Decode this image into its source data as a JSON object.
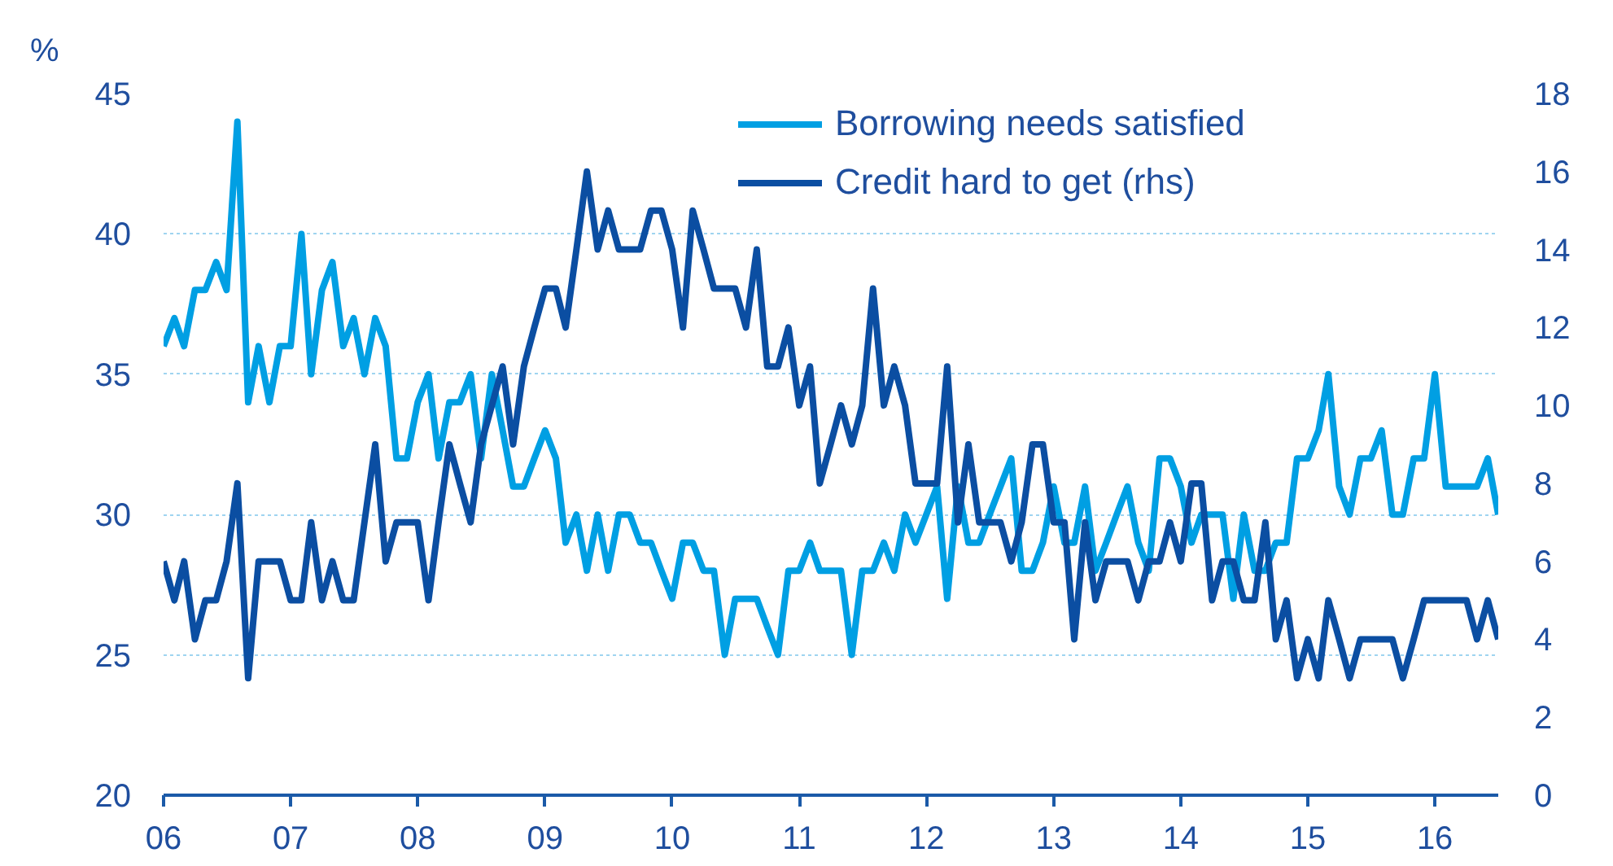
{
  "chart_data": {
    "type": "line",
    "ylabel": "%",
    "x": [
      "2006-01",
      "2006-02",
      "2006-03",
      "2006-04",
      "2006-05",
      "2006-06",
      "2006-07",
      "2006-08",
      "2006-09",
      "2006-10",
      "2006-11",
      "2006-12",
      "2007-01",
      "2007-02",
      "2007-03",
      "2007-04",
      "2007-05",
      "2007-06",
      "2007-07",
      "2007-08",
      "2007-09",
      "2007-10",
      "2007-11",
      "2007-12",
      "2008-01",
      "2008-02",
      "2008-03",
      "2008-04",
      "2008-05",
      "2008-06",
      "2008-07",
      "2008-08",
      "2008-09",
      "2008-10",
      "2008-11",
      "2008-12",
      "2009-01",
      "2009-02",
      "2009-03",
      "2009-04",
      "2009-05",
      "2009-06",
      "2009-07",
      "2009-08",
      "2009-09",
      "2009-10",
      "2009-11",
      "2009-12",
      "2010-01",
      "2010-02",
      "2010-03",
      "2010-04",
      "2010-05",
      "2010-06",
      "2010-07",
      "2010-08",
      "2010-09",
      "2010-10",
      "2010-11",
      "2010-12",
      "2011-01",
      "2011-02",
      "2011-03",
      "2011-04",
      "2011-05",
      "2011-06",
      "2011-07",
      "2011-08",
      "2011-09",
      "2011-10",
      "2011-11",
      "2011-12",
      "2012-01",
      "2012-02",
      "2012-03",
      "2012-04",
      "2012-05",
      "2012-06",
      "2012-07",
      "2012-08",
      "2012-09",
      "2012-10",
      "2012-11",
      "2012-12",
      "2013-01",
      "2013-02",
      "2013-03",
      "2013-04",
      "2013-05",
      "2013-06",
      "2013-07",
      "2013-08",
      "2013-09",
      "2013-10",
      "2013-11",
      "2013-12",
      "2014-01",
      "2014-02",
      "2014-03",
      "2014-04",
      "2014-05",
      "2014-06",
      "2014-07",
      "2014-08",
      "2014-09",
      "2014-10",
      "2014-11",
      "2014-12",
      "2015-01",
      "2015-02",
      "2015-03",
      "2015-04",
      "2015-05",
      "2015-06",
      "2015-07",
      "2015-08",
      "2015-09",
      "2015-10",
      "2015-11",
      "2015-12",
      "2016-01",
      "2016-02",
      "2016-03",
      "2016-04",
      "2016-05",
      "2016-06",
      "2016-07"
    ],
    "series": [
      {
        "name": "Borrowing needs satisfied",
        "color": "#009fe3",
        "values": [
          36,
          37,
          36,
          38,
          38,
          39,
          38,
          44,
          34,
          36,
          34,
          36,
          36,
          40,
          35,
          38,
          39,
          36,
          37,
          35,
          37,
          36,
          32,
          32,
          34,
          35,
          32,
          34,
          34,
          35,
          32,
          35,
          33,
          31,
          31,
          32,
          33,
          32,
          29,
          30,
          28,
          30,
          28,
          30,
          30,
          29,
          29,
          28,
          27,
          29,
          29,
          28,
          28,
          25,
          27,
          27,
          27,
          26,
          25,
          28,
          28,
          29,
          28,
          28,
          28,
          25,
          28,
          28,
          29,
          28,
          30,
          29,
          30,
          31,
          27,
          31,
          29,
          29,
          30,
          31,
          32,
          28,
          28,
          29,
          31,
          29,
          29,
          31,
          28,
          29,
          30,
          31,
          29,
          28,
          32,
          32,
          31,
          29,
          30,
          30,
          30,
          27,
          30,
          28,
          28,
          29,
          29,
          32,
          32,
          33,
          35,
          31,
          30,
          32,
          32,
          33,
          30,
          30,
          32,
          32,
          35,
          31,
          31,
          31,
          31,
          32,
          30
        ]
      },
      {
        "name": "Credit hard to get (rhs)",
        "color": "#0b4ea2",
        "axis": "y2",
        "values": [
          6,
          5,
          6,
          4,
          5,
          5,
          6,
          8,
          3,
          6,
          6,
          6,
          5,
          5,
          7,
          5,
          6,
          5,
          5,
          7,
          9,
          6,
          7,
          7,
          7,
          5,
          7,
          9,
          8,
          7,
          9,
          10,
          11,
          9,
          11,
          12,
          13,
          13,
          12,
          14,
          16,
          14,
          15,
          14,
          14,
          14,
          15,
          15,
          14,
          12,
          15,
          14,
          13,
          13,
          13,
          12,
          14,
          11,
          11,
          12,
          10,
          11,
          8,
          9,
          10,
          9,
          10,
          13,
          10,
          11,
          10,
          8,
          8,
          8,
          11,
          7,
          9,
          7,
          7,
          7,
          6,
          7,
          9,
          9,
          7,
          7,
          4,
          7,
          5,
          6,
          6,
          6,
          5,
          6,
          6,
          7,
          6,
          8,
          8,
          5,
          6,
          6,
          5,
          5,
          7,
          4,
          5,
          3,
          4,
          3,
          5,
          4,
          3,
          4,
          4,
          4,
          4,
          3,
          4,
          5,
          5,
          5,
          5,
          5,
          4,
          5,
          4
        ]
      }
    ],
    "xlim": [
      "2006-01",
      "2016-07"
    ],
    "xticks": [
      {
        "value": "2006",
        "label": "06"
      },
      {
        "value": "2007",
        "label": "07"
      },
      {
        "value": "2008",
        "label": "08"
      },
      {
        "value": "2009",
        "label": "09"
      },
      {
        "value": "2010",
        "label": "10"
      },
      {
        "value": "2011",
        "label": "11"
      },
      {
        "value": "2012",
        "label": "12"
      },
      {
        "value": "2013",
        "label": "13"
      },
      {
        "value": "2014",
        "label": "14"
      },
      {
        "value": "2015",
        "label": "15"
      },
      {
        "value": "2016",
        "label": "16"
      }
    ],
    "ylim": [
      20,
      45
    ],
    "yticks": [
      20,
      25,
      30,
      35,
      40,
      45
    ],
    "y2lim": [
      0,
      18
    ],
    "y2ticks": [
      0,
      2,
      4,
      6,
      8,
      10,
      12,
      14,
      16,
      18
    ],
    "grid": "y",
    "legend": "top right"
  }
}
